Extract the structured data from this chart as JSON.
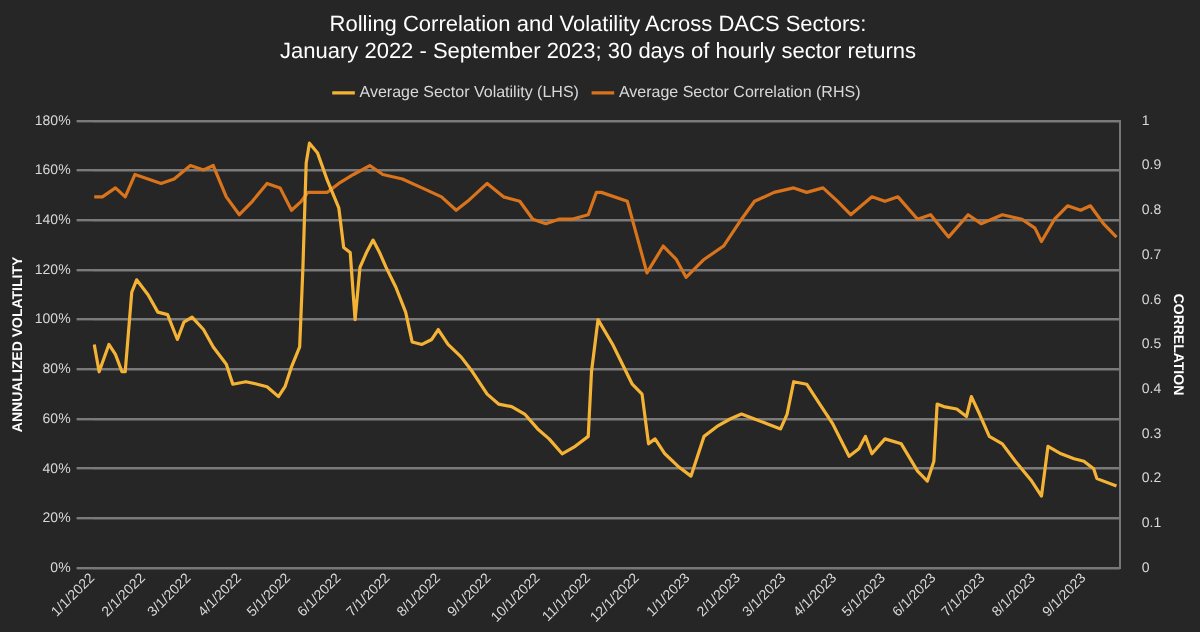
{
  "chart_data": {
    "type": "line",
    "title": "Rolling Correlation and Volatility Across DACS Sectors:",
    "subtitle": "January 2022 - September 2023; 30 days of hourly sector returns",
    "ylabel": "ANNUALIZED VOLATILITY",
    "y2label": "CORRELATION",
    "legend": "top",
    "grid": "y",
    "marker": "none",
    "line_style": "solid",
    "xlim": [
      "2022-01-01",
      "2023-09-23"
    ],
    "xticks": [
      {
        "value": "2022-01-01",
        "label": "1/1/2022"
      },
      {
        "value": "2022-02-01",
        "label": "2/1/2022"
      },
      {
        "value": "2022-03-01",
        "label": "3/1/2022"
      },
      {
        "value": "2022-04-01",
        "label": "4/1/2022"
      },
      {
        "value": "2022-05-01",
        "label": "5/1/2022"
      },
      {
        "value": "2022-06-01",
        "label": "6/1/2022"
      },
      {
        "value": "2022-07-01",
        "label": "7/1/2022"
      },
      {
        "value": "2022-08-01",
        "label": "8/1/2022"
      },
      {
        "value": "2022-09-01",
        "label": "9/1/2022"
      },
      {
        "value": "2022-10-01",
        "label": "10/1/2022"
      },
      {
        "value": "2022-11-01",
        "label": "11/1/2022"
      },
      {
        "value": "2022-12-01",
        "label": "12/1/2022"
      },
      {
        "value": "2023-01-01",
        "label": "1/1/2023"
      },
      {
        "value": "2023-02-01",
        "label": "2/1/2023"
      },
      {
        "value": "2023-03-01",
        "label": "3/1/2023"
      },
      {
        "value": "2023-04-01",
        "label": "4/1/2023"
      },
      {
        "value": "2023-05-01",
        "label": "5/1/2023"
      },
      {
        "value": "2023-06-01",
        "label": "6/1/2023"
      },
      {
        "value": "2023-07-01",
        "label": "7/1/2023"
      },
      {
        "value": "2023-08-01",
        "label": "8/1/2023"
      },
      {
        "value": "2023-09-01",
        "label": "9/1/2023"
      }
    ],
    "ylim": [
      0,
      180
    ],
    "yticks": [
      {
        "value": 0,
        "label": "0%"
      },
      {
        "value": 20,
        "label": "20%"
      },
      {
        "value": 40,
        "label": "40%"
      },
      {
        "value": 60,
        "label": "60%"
      },
      {
        "value": 80,
        "label": "80%"
      },
      {
        "value": 100,
        "label": "100%"
      },
      {
        "value": 120,
        "label": "120%"
      },
      {
        "value": 140,
        "label": "140%"
      },
      {
        "value": 160,
        "label": "160%"
      },
      {
        "value": 180,
        "label": "180%"
      }
    ],
    "y2lim": [
      0,
      1
    ],
    "y2ticks": [
      0,
      0.1,
      0.2,
      0.3,
      0.4,
      0.5,
      0.6,
      0.7,
      0.8,
      0.9,
      1
    ],
    "series": [
      {
        "name": "Average Sector Volatility (LHS)",
        "color": "#f5b335",
        "x": [
          "2022-01-02",
          "2022-01-05",
          "2022-01-11",
          "2022-01-15",
          "2022-01-19",
          "2022-01-21",
          "2022-01-25",
          "2022-01-28",
          "2022-02-04",
          "2022-02-10",
          "2022-02-16",
          "2022-02-22",
          "2022-02-26",
          "2022-03-03",
          "2022-03-10",
          "2022-03-16",
          "2022-03-24",
          "2022-03-28",
          "2022-04-05",
          "2022-04-12",
          "2022-04-18",
          "2022-04-25",
          "2022-04-29",
          "2022-05-03",
          "2022-05-08",
          "2022-05-10",
          "2022-05-12",
          "2022-05-14",
          "2022-05-19",
          "2022-05-25",
          "2022-06-01",
          "2022-06-04",
          "2022-06-08",
          "2022-06-11",
          "2022-06-14",
          "2022-06-18",
          "2022-06-22",
          "2022-06-26",
          "2022-06-30",
          "2022-07-06",
          "2022-07-12",
          "2022-07-16",
          "2022-07-22",
          "2022-07-28",
          "2022-08-01",
          "2022-08-07",
          "2022-08-15",
          "2022-08-22",
          "2022-08-31",
          "2022-09-07",
          "2022-09-15",
          "2022-09-23",
          "2022-10-01",
          "2022-10-08",
          "2022-10-16",
          "2022-10-24",
          "2022-11-01",
          "2022-11-03",
          "2022-11-07",
          "2022-11-16",
          "2022-11-28",
          "2022-12-04",
          "2022-12-08",
          "2022-12-12",
          "2022-12-18",
          "2022-12-26",
          "2023-01-03",
          "2023-01-11",
          "2023-01-19",
          "2023-01-27",
          "2023-02-03",
          "2023-02-11",
          "2023-02-19",
          "2023-02-27",
          "2023-03-03",
          "2023-03-07",
          "2023-03-15",
          "2023-03-23",
          "2023-03-31",
          "2023-04-10",
          "2023-04-16",
          "2023-04-20",
          "2023-04-24",
          "2023-05-02",
          "2023-05-12",
          "2023-05-22",
          "2023-05-28",
          "2023-06-01",
          "2023-06-03",
          "2023-06-07",
          "2023-06-15",
          "2023-06-21",
          "2023-06-24",
          "2023-06-29",
          "2023-07-05",
          "2023-07-13",
          "2023-07-21",
          "2023-07-31",
          "2023-08-06",
          "2023-08-10",
          "2023-08-18",
          "2023-08-26",
          "2023-09-01",
          "2023-09-07",
          "2023-09-09",
          "2023-09-21"
        ],
        "values": [
          90,
          79,
          90,
          86,
          79,
          79,
          111,
          116,
          110,
          103,
          102,
          92,
          99,
          101,
          96,
          89,
          82,
          74,
          75,
          74,
          73,
          69,
          73,
          81,
          89,
          121,
          163,
          171,
          167,
          156,
          145,
          129,
          127,
          100,
          121,
          127,
          132,
          127,
          121,
          113,
          103,
          91,
          90,
          92,
          96,
          90,
          85,
          79,
          70,
          66,
          65,
          62,
          56,
          52,
          46,
          49,
          53,
          79,
          100,
          90,
          74,
          70,
          50,
          52,
          46,
          41,
          37,
          53,
          57,
          60,
          62,
          60,
          58,
          56,
          62,
          75,
          74,
          66,
          58,
          45,
          48,
          53,
          46,
          52,
          50,
          39,
          35,
          43,
          66,
          65,
          64,
          61,
          69,
          62,
          53,
          50,
          43,
          35,
          29,
          49,
          46,
          44,
          43,
          40,
          36,
          33
        ]
      },
      {
        "name": "Average Sector Correlation (RHS)",
        "color": "#d9731c",
        "axis": "y2",
        "x": [
          "2022-01-02",
          "2022-01-07",
          "2022-01-15",
          "2022-01-21",
          "2022-01-27",
          "2022-02-04",
          "2022-02-12",
          "2022-02-20",
          "2022-03-02",
          "2022-03-10",
          "2022-03-16",
          "2022-03-24",
          "2022-04-01",
          "2022-04-09",
          "2022-04-18",
          "2022-04-26",
          "2022-05-03",
          "2022-05-09",
          "2022-05-13",
          "2022-05-25",
          "2022-06-01",
          "2022-06-10",
          "2022-06-20",
          "2022-06-28",
          "2022-07-10",
          "2022-07-22",
          "2022-08-03",
          "2022-08-12",
          "2022-08-19",
          "2022-08-31",
          "2022-09-10",
          "2022-09-20",
          "2022-09-28",
          "2022-10-06",
          "2022-10-14",
          "2022-10-22",
          "2022-11-01",
          "2022-11-06",
          "2022-11-09",
          "2022-11-25",
          "2022-12-01",
          "2022-12-07",
          "2022-12-17",
          "2022-12-25",
          "2022-12-31",
          "2023-01-11",
          "2023-01-23",
          "2023-02-03",
          "2023-02-11",
          "2023-02-23",
          "2023-03-07",
          "2023-03-15",
          "2023-03-25",
          "2023-04-03",
          "2023-04-11",
          "2023-04-24",
          "2023-05-02",
          "2023-05-10",
          "2023-05-22",
          "2023-05-30",
          "2023-06-10",
          "2023-06-22",
          "2023-06-30",
          "2023-07-13",
          "2023-07-25",
          "2023-08-02",
          "2023-08-06",
          "2023-08-14",
          "2023-08-22",
          "2023-08-30",
          "2023-09-05",
          "2023-09-13",
          "2023-09-21"
        ],
        "values": [
          0.83,
          0.83,
          0.85,
          0.83,
          0.88,
          0.87,
          0.86,
          0.87,
          0.9,
          0.89,
          0.9,
          0.83,
          0.79,
          0.82,
          0.86,
          0.85,
          0.8,
          0.82,
          0.84,
          0.84,
          0.86,
          0.88,
          0.9,
          0.88,
          0.87,
          0.85,
          0.83,
          0.8,
          0.82,
          0.86,
          0.83,
          0.82,
          0.78,
          0.77,
          0.78,
          0.78,
          0.79,
          0.84,
          0.84,
          0.82,
          0.74,
          0.66,
          0.72,
          0.69,
          0.65,
          0.69,
          0.72,
          0.78,
          0.82,
          0.84,
          0.85,
          0.84,
          0.85,
          0.82,
          0.79,
          0.83,
          0.82,
          0.83,
          0.78,
          0.79,
          0.74,
          0.79,
          0.77,
          0.79,
          0.78,
          0.76,
          0.73,
          0.78,
          0.81,
          0.8,
          0.81,
          0.77,
          0.74
        ]
      }
    ]
  }
}
